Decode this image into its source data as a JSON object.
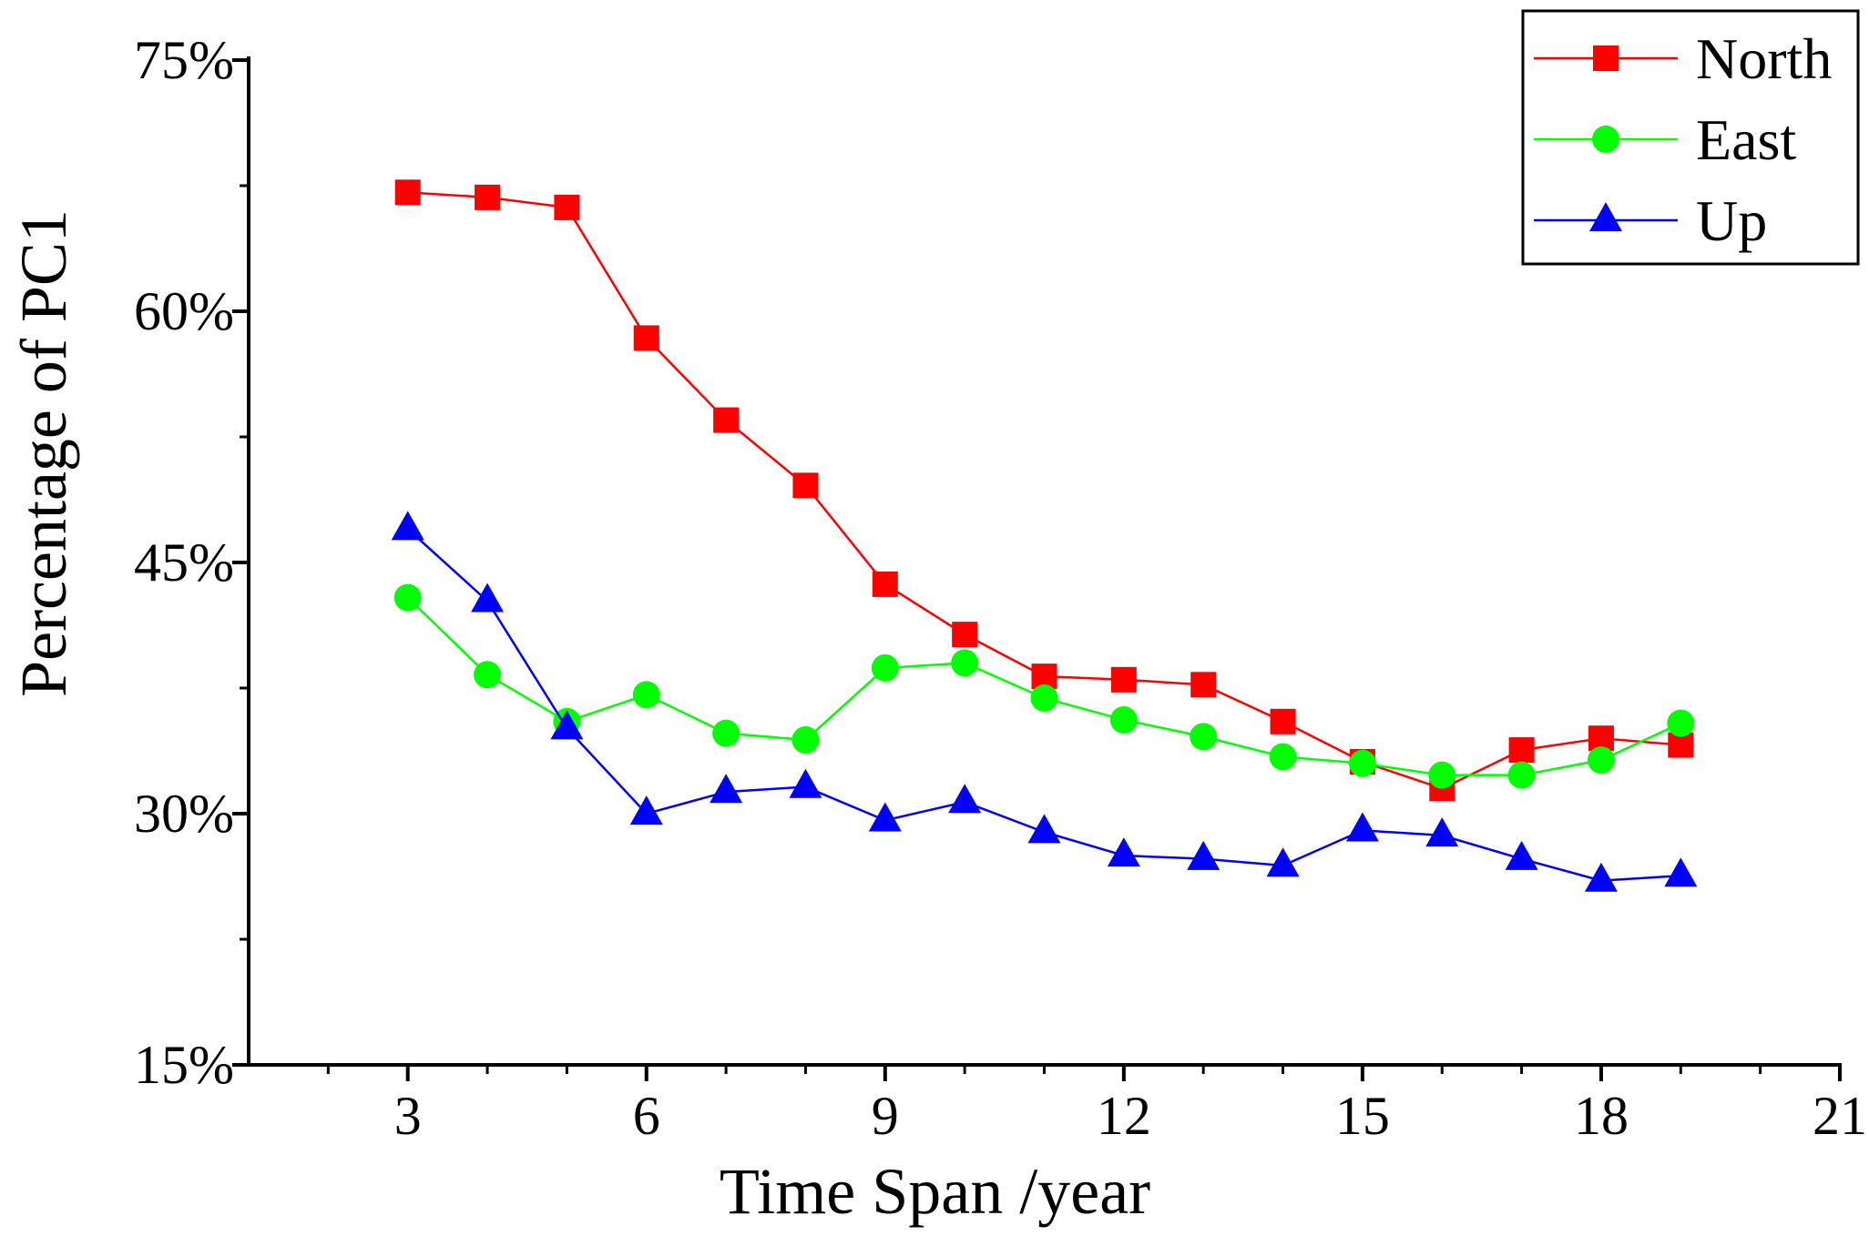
{
  "chart_data": {
    "type": "line",
    "title": "",
    "xlabel": "Time Span /year",
    "ylabel": "Percentage of PC1",
    "xlim": [
      1,
      21
    ],
    "ylim": [
      15,
      75
    ],
    "x_ticks": [
      3,
      6,
      9,
      12,
      15,
      18,
      21
    ],
    "x_tick_labels": [
      "3",
      "6",
      "9",
      "12",
      "15",
      "18",
      "21"
    ],
    "x_minor_ticks": [
      2,
      4,
      5,
      7,
      8,
      10,
      11,
      13,
      14,
      16,
      17,
      19,
      20
    ],
    "y_ticks": [
      15,
      30,
      45,
      60,
      75
    ],
    "y_tick_labels": [
      "15%",
      "30%",
      "45%",
      "60%",
      "75%"
    ],
    "y_minor_ticks": [
      22.5,
      37.5,
      52.5,
      67.5
    ],
    "legend_position": "top-right",
    "x": [
      3,
      4,
      5,
      6,
      7,
      8,
      9,
      10,
      11,
      12,
      13,
      14,
      15,
      16,
      17,
      18,
      19
    ],
    "series": [
      {
        "name": "North",
        "color": "#ff0000",
        "marker": "square",
        "values": [
          67.1,
          66.8,
          66.2,
          58.4,
          53.5,
          49.6,
          43.7,
          40.7,
          38.2,
          38.0,
          37.7,
          35.5,
          33.1,
          31.5,
          33.8,
          34.5,
          34.1
        ]
      },
      {
        "name": "East",
        "color": "#00ff00",
        "marker": "circle",
        "values": [
          42.9,
          38.3,
          35.5,
          37.1,
          34.8,
          34.4,
          38.7,
          39.0,
          36.9,
          35.6,
          34.6,
          33.4,
          33.0,
          32.3,
          32.3,
          33.2,
          35.4
        ]
      },
      {
        "name": "Up",
        "color": "#0000ff",
        "marker": "triangle",
        "values": [
          47.0,
          42.7,
          35.1,
          30.0,
          31.3,
          31.6,
          29.6,
          30.7,
          28.9,
          27.5,
          27.3,
          26.9,
          29.0,
          28.7,
          27.3,
          26.0,
          26.3
        ]
      }
    ]
  }
}
